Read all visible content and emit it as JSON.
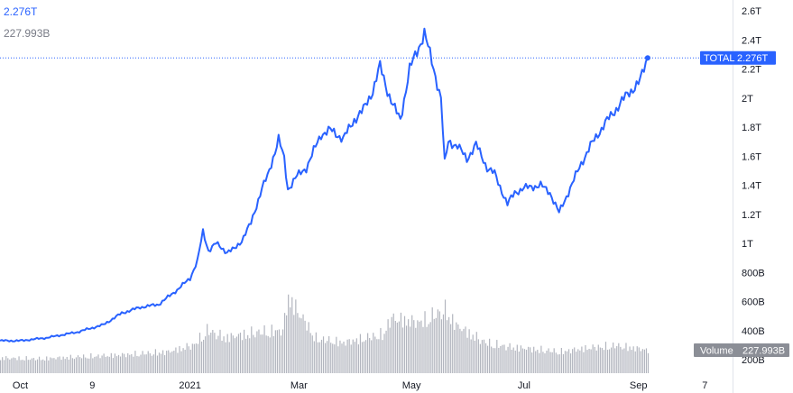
{
  "legend": {
    "total_value": "2.276T",
    "volume_value": "227.993B"
  },
  "colors": {
    "line": "#2962ff",
    "volume": "#b2b5be",
    "tag_bg": "#2962ff",
    "volume_tag_bg": "#8b8e96"
  },
  "chart_data": {
    "type": "line",
    "title": "",
    "series": [
      {
        "name": "TOTAL",
        "x": [
          "2020-09-20",
          "2020-10-01",
          "2020-10-15",
          "2020-11-01",
          "2020-11-15",
          "2020-11-25",
          "2020-12-05",
          "2020-12-15",
          "2020-12-25",
          "2021-01-01",
          "2021-01-05",
          "2021-01-08",
          "2021-01-11",
          "2021-01-15",
          "2021-01-21",
          "2021-01-25",
          "2021-01-29",
          "2021-02-03",
          "2021-02-09",
          "2021-02-12",
          "2021-02-18",
          "2021-02-21",
          "2021-02-23",
          "2021-02-27",
          "2021-03-05",
          "2021-03-13",
          "2021-03-18",
          "2021-03-25",
          "2021-03-31",
          "2021-04-05",
          "2021-04-10",
          "2021-04-14",
          "2021-04-18",
          "2021-04-21",
          "2021-04-25",
          "2021-04-30",
          "2021-05-05",
          "2021-05-08",
          "2021-05-11",
          "2021-05-13",
          "2021-05-17",
          "2021-05-19",
          "2021-05-21",
          "2021-05-26",
          "2021-05-31",
          "2021-06-05",
          "2021-06-11",
          "2021-06-15",
          "2021-06-22",
          "2021-06-26",
          "2021-07-01",
          "2021-07-10",
          "2021-07-15",
          "2021-07-20",
          "2021-07-26",
          "2021-08-01",
          "2021-08-06",
          "2021-08-10",
          "2021-08-14",
          "2021-08-18",
          "2021-08-23",
          "2021-08-28",
          "2021-09-02",
          "2021-09-04",
          "2021-09-06"
        ],
        "values": [
          0.33,
          0.33,
          0.35,
          0.39,
          0.44,
          0.52,
          0.56,
          0.58,
          0.68,
          0.76,
          0.88,
          1.08,
          0.95,
          1.0,
          0.94,
          0.96,
          1.02,
          1.14,
          1.38,
          1.46,
          1.72,
          1.58,
          1.37,
          1.45,
          1.52,
          1.75,
          1.78,
          1.72,
          1.85,
          1.92,
          2.05,
          2.22,
          2.05,
          1.95,
          1.85,
          2.2,
          2.35,
          2.45,
          2.3,
          2.2,
          2.0,
          1.55,
          1.7,
          1.67,
          1.58,
          1.68,
          1.52,
          1.48,
          1.27,
          1.35,
          1.38,
          1.4,
          1.35,
          1.21,
          1.38,
          1.55,
          1.67,
          1.75,
          1.83,
          1.89,
          1.98,
          2.05,
          2.12,
          2.2,
          2.276
        ]
      },
      {
        "name": "Volume",
        "x": [
          "2020-09-20",
          "2020-10-10",
          "2020-11-01",
          "2020-11-25",
          "2020-12-20",
          "2021-01-03",
          "2021-01-10",
          "2021-01-20",
          "2021-02-05",
          "2021-02-20",
          "2021-02-23",
          "2021-03-10",
          "2021-03-25",
          "2021-04-15",
          "2021-04-20",
          "2021-05-05",
          "2021-05-12",
          "2021-05-19",
          "2021-05-25",
          "2021-06-10",
          "2021-06-22",
          "2021-07-10",
          "2021-07-20",
          "2021-08-05",
          "2021-08-20",
          "2021-09-06"
        ],
        "values": [
          150,
          140,
          160,
          180,
          210,
          280,
          420,
          350,
          400,
          420,
          750,
          340,
          300,
          380,
          540,
          500,
          560,
          620,
          470,
          300,
          260,
          230,
          210,
          250,
          270,
          228
        ]
      }
    ],
    "x_ticks": [
      {
        "date": "2020-10-01",
        "label": "Oct"
      },
      {
        "date": "2020-11-09",
        "label": "9"
      },
      {
        "date": "2021-01-01",
        "label": "2021"
      },
      {
        "date": "2021-03-01",
        "label": "Mar"
      },
      {
        "date": "2021-05-01",
        "label": "May"
      },
      {
        "date": "2021-07-01",
        "label": "Jul"
      },
      {
        "date": "2021-09-01",
        "label": "Sep"
      },
      {
        "date": "2021-10-07",
        "label": "7"
      }
    ],
    "y_ticks": [
      "2.6T",
      "2.4T",
      "2.2T",
      "2T",
      "1.8T",
      "1.6T",
      "1.4T",
      "1.2T",
      "1T",
      "800B",
      "600B",
      "400B",
      "200B"
    ],
    "ylim": [
      0.1,
      2.65
    ],
    "xlim": [
      "2020-09-20",
      "2021-10-22"
    ],
    "last_value_label": "TOTAL",
    "last_value": "2.276T",
    "volume_label": "Volume",
    "volume_value": "227.993B",
    "grid": false
  }
}
